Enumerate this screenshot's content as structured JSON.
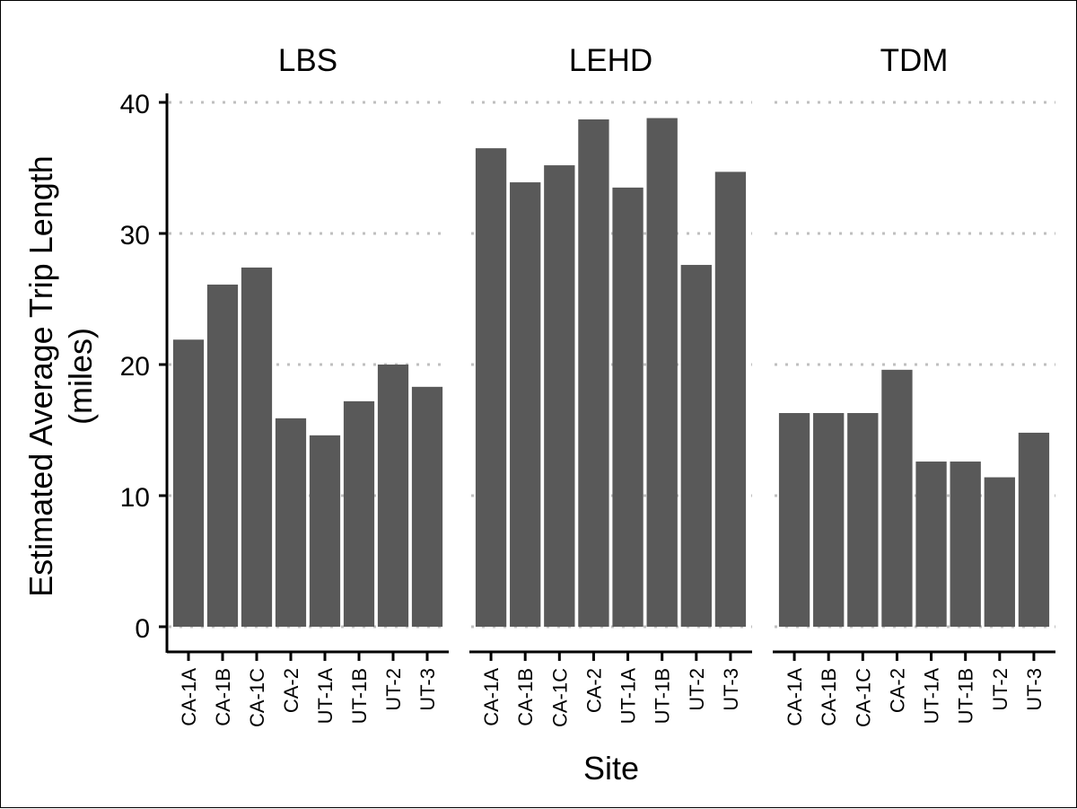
{
  "chart_data": {
    "type": "bar",
    "xlabel": "Site",
    "ylabel_lines": [
      "Estimated Average Trip Length",
      "(miles)"
    ],
    "ylim": [
      0,
      40
    ],
    "y_ticks": [
      "0",
      "10",
      "20",
      "30",
      "40"
    ],
    "grid": "horizontal dotted",
    "bar_color": "#595959",
    "grid_color": "#bfbfbf",
    "categories": [
      "CA-1A",
      "CA-1B",
      "CA-1C",
      "CA-2",
      "UT-1A",
      "UT-1B",
      "UT-2",
      "UT-3"
    ],
    "panels": [
      {
        "name": "LBS",
        "values": [
          21.9,
          26.1,
          27.4,
          15.9,
          14.6,
          17.2,
          20.0,
          18.3
        ]
      },
      {
        "name": "LEHD",
        "values": [
          36.5,
          33.9,
          35.2,
          38.7,
          33.5,
          38.8,
          27.6,
          34.7
        ]
      },
      {
        "name": "TDM",
        "values": [
          16.3,
          16.3,
          16.3,
          19.6,
          12.6,
          12.6,
          11.4,
          14.8
        ]
      }
    ]
  }
}
